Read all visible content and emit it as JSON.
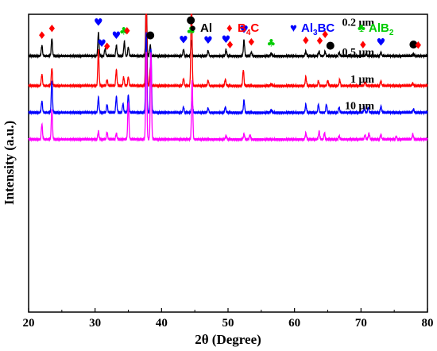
{
  "chart_data": {
    "type": "line",
    "xlabel": "2θ (Degree)",
    "ylabel": "Intensity (a.u.)",
    "xlim": [
      20,
      80
    ],
    "xticks": [
      20,
      30,
      40,
      50,
      60,
      70,
      80
    ],
    "yticks_shown": false,
    "grid": false,
    "legend_position": "top-right",
    "legend": [
      {
        "symbol": "●",
        "name": "Al",
        "html": "Al",
        "color": "#000000"
      },
      {
        "symbol": "♦",
        "name": "B4C",
        "html": "B<sub>4</sub>C",
        "color": "#ff0000"
      },
      {
        "symbol": "♥",
        "name": "Al3BC",
        "html": "Al<sub>3</sub>BC",
        "color": "#0000ff"
      },
      {
        "symbol": "♣",
        "name": "AlB2",
        "html": "AlB<sub>2</sub>",
        "color": "#00cc00"
      }
    ],
    "series": [
      {
        "name": "0.2 μm",
        "color": "#000000",
        "baseline": 0.86,
        "peaks": [
          [
            22.0,
            0.12
          ],
          [
            23.5,
            0.2
          ],
          [
            30.5,
            0.26
          ],
          [
            31.5,
            0.08
          ],
          [
            33.2,
            0.12
          ],
          [
            34.4,
            0.16
          ],
          [
            35.0,
            0.1
          ],
          [
            37.7,
            0.62
          ],
          [
            38.3,
            0.12
          ],
          [
            43.3,
            0.07
          ],
          [
            44.5,
            0.18
          ],
          [
            47.0,
            0.06
          ],
          [
            49.7,
            0.07
          ],
          [
            52.4,
            0.18
          ],
          [
            53.5,
            0.04
          ],
          [
            56.5,
            0.03
          ],
          [
            61.7,
            0.05
          ],
          [
            63.7,
            0.05
          ],
          [
            64.6,
            0.05
          ],
          [
            66.7,
            0.04
          ],
          [
            70.8,
            0.03
          ],
          [
            73.0,
            0.04
          ],
          [
            77.9,
            0.02
          ]
        ]
      },
      {
        "name": "0.5 μm",
        "color": "#ff0000",
        "baseline": 0.76,
        "peaks": [
          [
            22.0,
            0.13
          ],
          [
            23.5,
            0.2
          ],
          [
            30.5,
            0.4
          ],
          [
            31.8,
            0.07
          ],
          [
            33.2,
            0.18
          ],
          [
            34.3,
            0.1
          ],
          [
            35.0,
            0.1
          ],
          [
            37.7,
            0.98
          ],
          [
            38.3,
            0.2
          ],
          [
            43.3,
            0.08
          ],
          [
            44.5,
            1.0
          ],
          [
            47.0,
            0.06
          ],
          [
            49.6,
            0.07
          ],
          [
            52.3,
            0.18
          ],
          [
            56.5,
            0.02
          ],
          [
            61.7,
            0.1
          ],
          [
            63.6,
            0.05
          ],
          [
            65.0,
            0.06
          ],
          [
            66.8,
            0.07
          ],
          [
            70.6,
            0.04
          ],
          [
            73.0,
            0.05
          ],
          [
            77.8,
            0.03
          ]
        ]
      },
      {
        "name": "1 μm",
        "color": "#0000ff",
        "baseline": 0.67,
        "peaks": [
          [
            22.0,
            0.13
          ],
          [
            23.5,
            0.36
          ],
          [
            30.5,
            0.17
          ],
          [
            31.8,
            0.09
          ],
          [
            33.2,
            0.18
          ],
          [
            34.2,
            0.1
          ],
          [
            35.0,
            0.2
          ],
          [
            37.7,
            0.9
          ],
          [
            38.4,
            0.72
          ],
          [
            43.3,
            0.06
          ],
          [
            44.6,
            0.12
          ],
          [
            47.0,
            0.05
          ],
          [
            49.6,
            0.06
          ],
          [
            52.4,
            0.14
          ],
          [
            56.5,
            0.03
          ],
          [
            61.7,
            0.09
          ],
          [
            63.6,
            0.09
          ],
          [
            64.8,
            0.09
          ],
          [
            66.7,
            0.06
          ],
          [
            70.5,
            0.05
          ],
          [
            71.1,
            0.06
          ],
          [
            73.0,
            0.07
          ],
          [
            77.9,
            0.04
          ]
        ]
      },
      {
        "name": "10 μm",
        "color": "#ff00ff",
        "baseline": 0.58,
        "peaks": [
          [
            22.0,
            0.17
          ],
          [
            23.5,
            0.34
          ],
          [
            30.5,
            0.09
          ],
          [
            31.8,
            0.08
          ],
          [
            33.2,
            0.07
          ],
          [
            35.0,
            0.42
          ],
          [
            37.7,
            0.98
          ],
          [
            38.4,
            0.98
          ],
          [
            44.6,
            0.66
          ],
          [
            49.7,
            0.04
          ],
          [
            52.4,
            0.06
          ],
          [
            53.3,
            0.05
          ],
          [
            61.7,
            0.07
          ],
          [
            63.7,
            0.09
          ],
          [
            64.5,
            0.07
          ],
          [
            66.7,
            0.04
          ],
          [
            70.6,
            0.05
          ],
          [
            71.2,
            0.07
          ],
          [
            73.0,
            0.05
          ],
          [
            75.3,
            0.03
          ],
          [
            77.8,
            0.06
          ]
        ]
      }
    ],
    "markers": [
      {
        "symbol": "♦",
        "color": "#ff0000",
        "x": 22.0,
        "series": 0
      },
      {
        "symbol": "♦",
        "color": "#ff0000",
        "x": 23.5,
        "series": 0
      },
      {
        "symbol": "♥",
        "color": "#0000ff",
        "x": 30.5,
        "series": 0,
        "stack": 1
      },
      {
        "symbol": "♥",
        "color": "#0000ff",
        "x": 31.0,
        "series": 0
      },
      {
        "symbol": "♦",
        "color": "#ff0000",
        "x": 31.8,
        "series": 0,
        "drop": 1
      },
      {
        "symbol": "♥",
        "color": "#0000ff",
        "x": 33.2,
        "series": 0
      },
      {
        "symbol": "♣",
        "color": "#00cc00",
        "x": 34.3,
        "series": 0
      },
      {
        "symbol": "♦",
        "color": "#ff0000",
        "x": 34.8,
        "series": 0,
        "raise": 1
      },
      {
        "symbol": "♦",
        "color": "#ff0000",
        "x": 37.7,
        "series": 0,
        "stack": 2
      },
      {
        "symbol": "♥",
        "color": "#0000ff",
        "x": 37.7,
        "series": 0,
        "stack": 1
      },
      {
        "symbol": "●",
        "color": "#000000",
        "x": 38.3,
        "series": 0
      },
      {
        "symbol": "♥",
        "color": "#0000ff",
        "x": 43.3,
        "series": 0
      },
      {
        "symbol": "●",
        "color": "#000000",
        "x": 44.4,
        "series": 0,
        "stack": 2
      },
      {
        "symbol": "♣",
        "color": "#00cc00",
        "x": 44.4,
        "series": 0,
        "stack": 1
      },
      {
        "symbol": "♥",
        "color": "#0000ff",
        "x": 47.0,
        "series": 0
      },
      {
        "symbol": "♥",
        "color": "#0000ff",
        "x": 49.7,
        "series": 0
      },
      {
        "symbol": "♦",
        "color": "#ff0000",
        "x": 50.3,
        "series": 0
      },
      {
        "symbol": "♥",
        "color": "#0000ff",
        "x": 52.4,
        "series": 0
      },
      {
        "symbol": "♦",
        "color": "#ff0000",
        "x": 53.5,
        "series": 0
      },
      {
        "symbol": "♣",
        "color": "#00cc00",
        "x": 56.5,
        "series": 0
      },
      {
        "symbol": "♦",
        "color": "#ff0000",
        "x": 61.7,
        "series": 0
      },
      {
        "symbol": "♦",
        "color": "#ff0000",
        "x": 63.8,
        "series": 0
      },
      {
        "symbol": "♦",
        "color": "#ff0000",
        "x": 64.6,
        "series": 0,
        "raise": 1
      },
      {
        "symbol": "●",
        "color": "#000000",
        "x": 65.4,
        "series": 0
      },
      {
        "symbol": "♦",
        "color": "#ff0000",
        "x": 70.3,
        "series": 0
      },
      {
        "symbol": "♥",
        "color": "#0000ff",
        "x": 73.0,
        "series": 0
      },
      {
        "symbol": "●",
        "color": "#000000",
        "x": 77.9,
        "series": 0
      },
      {
        "symbol": "♦",
        "color": "#ff0000",
        "x": 78.6,
        "series": 0
      }
    ]
  }
}
